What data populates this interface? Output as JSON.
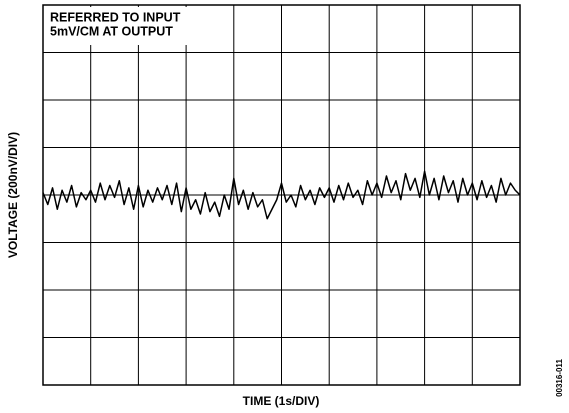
{
  "chart_data": {
    "type": "line",
    "annotation": [
      "REFERRED TO INPUT",
      "5mV/CM AT OUTPUT"
    ],
    "xlabel": "TIME (1s/DIV)",
    "ylabel": "VOLTAGE (200nV/DIV)",
    "figure_id": "00316-011",
    "color": "#000000",
    "grid": true,
    "xlim": [
      0,
      10
    ],
    "xticks": [
      0,
      1,
      2,
      3,
      4,
      5,
      6,
      7,
      8,
      9,
      10
    ],
    "ylim": [
      -800,
      800
    ],
    "yticks": [
      -800,
      -600,
      -400,
      -200,
      0,
      200,
      400,
      600,
      800
    ],
    "x": [
      0,
      0.1,
      0.2,
      0.3,
      0.4,
      0.5,
      0.6,
      0.7,
      0.8,
      0.9,
      1,
      1.1,
      1.2,
      1.3,
      1.4,
      1.5,
      1.6,
      1.7,
      1.8,
      1.9,
      2,
      2.1,
      2.2,
      2.3,
      2.4,
      2.5,
      2.6,
      2.7,
      2.8,
      2.9,
      3,
      3.1,
      3.2,
      3.3,
      3.4,
      3.5,
      3.6,
      3.7,
      3.8,
      3.9,
      4,
      4.1,
      4.2,
      4.3,
      4.4,
      4.5,
      4.6,
      4.7,
      4.8,
      4.9,
      5,
      5.1,
      5.2,
      5.3,
      5.4,
      5.5,
      5.6,
      5.7,
      5.8,
      5.9,
      6,
      6.1,
      6.2,
      6.3,
      6.4,
      6.5,
      6.6,
      6.7,
      6.8,
      6.9,
      7,
      7.1,
      7.2,
      7.3,
      7.4,
      7.5,
      7.6,
      7.7,
      7.8,
      7.9,
      8,
      8.1,
      8.2,
      8.3,
      8.4,
      8.5,
      8.6,
      8.7,
      8.8,
      8.9,
      9,
      9.1,
      9.2,
      9.3,
      9.4,
      9.5,
      9.6,
      9.7,
      9.8,
      9.9,
      10
    ],
    "values": [
      10,
      -40,
      30,
      -60,
      20,
      -30,
      40,
      -50,
      10,
      -20,
      20,
      -30,
      50,
      -20,
      40,
      -10,
      60,
      -40,
      30,
      -60,
      40,
      -50,
      20,
      -30,
      30,
      -20,
      40,
      -40,
      50,
      -70,
      30,
      -60,
      -20,
      -80,
      10,
      -70,
      -30,
      -90,
      0,
      -60,
      70,
      -40,
      20,
      -60,
      10,
      -50,
      -20,
      -100,
      -60,
      -20,
      50,
      -30,
      0,
      -50,
      40,
      -20,
      20,
      -40,
      30,
      -10,
      30,
      -30,
      40,
      -20,
      50,
      -10,
      20,
      -40,
      60,
      0,
      50,
      -10,
      80,
      10,
      60,
      -20,
      90,
      20,
      70,
      -10,
      100,
      0,
      70,
      -20,
      80,
      10,
      60,
      -30,
      70,
      0,
      50,
      -20,
      60,
      -10,
      40,
      -30,
      70,
      0,
      50,
      20,
      0
    ]
  }
}
